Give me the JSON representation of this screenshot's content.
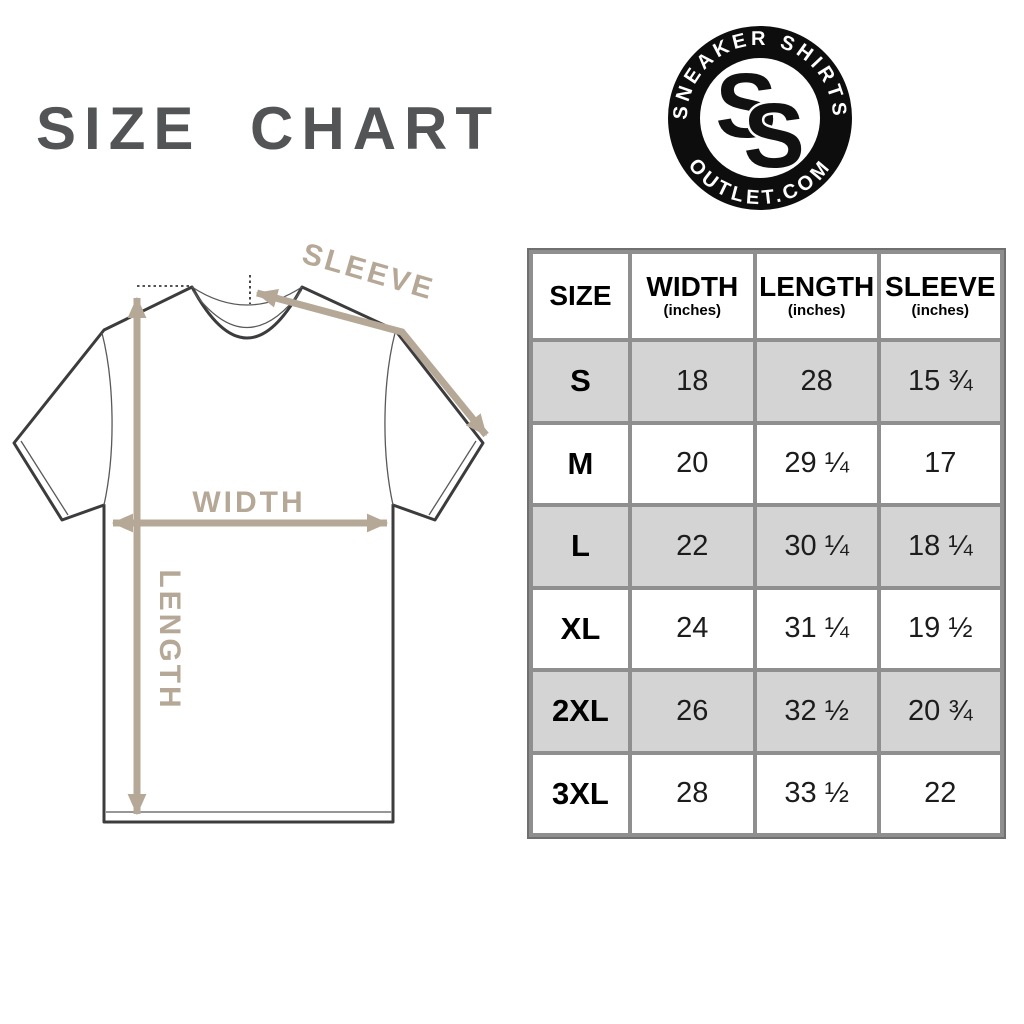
{
  "title": "SIZE CHART",
  "logo": {
    "top_text": "SNEAKER SHIRTS",
    "bottom_text": "OUTLET.COM",
    "monogram": {
      "s1": "S",
      "s2": "S"
    }
  },
  "diagram": {
    "labels": {
      "width": "WIDTH",
      "length": "LENGTH",
      "sleeve": "SLEEVE"
    }
  },
  "table": {
    "columns": [
      {
        "label": "SIZE",
        "sub": ""
      },
      {
        "label": "WIDTH",
        "sub": "(inches)"
      },
      {
        "label": "LENGTH",
        "sub": "(inches)"
      },
      {
        "label": "SLEEVE",
        "sub": "(inches)"
      }
    ],
    "rows": [
      {
        "size": "S",
        "width": "18",
        "length": "28",
        "sleeve": "15 ¾"
      },
      {
        "size": "M",
        "width": "20",
        "length": "29 ¼",
        "sleeve": "17"
      },
      {
        "size": "L",
        "width": "22",
        "length": "30 ¼",
        "sleeve": "18 ¼"
      },
      {
        "size": "XL",
        "width": "24",
        "length": "31 ¼",
        "sleeve": "19 ½"
      },
      {
        "size": "2XL",
        "width": "26",
        "length": "32 ½",
        "sleeve": "20 ¾"
      },
      {
        "size": "3XL",
        "width": "28",
        "length": "33 ½",
        "sleeve": "22"
      }
    ]
  },
  "colors": {
    "title_gray": "#535456",
    "measure_tan": "#b5a897",
    "shirt_outline": "#3c3c3e",
    "table_border": "#8f8f8f",
    "table_outer_border": "#6f6f6f",
    "row_shade": "#d4d4d4",
    "logo_black": "#0d0d0d"
  }
}
